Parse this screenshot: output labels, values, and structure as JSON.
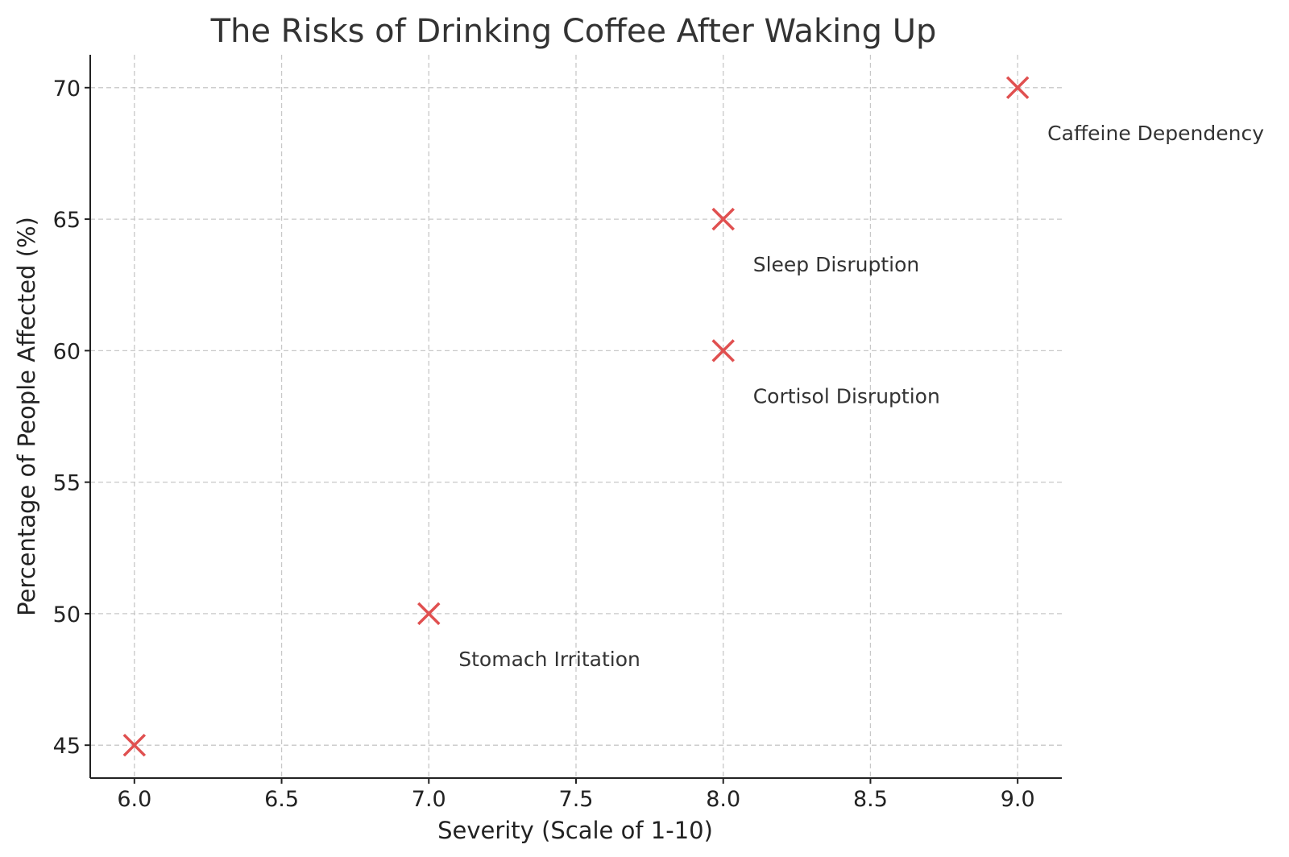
{
  "chart_data": {
    "type": "scatter",
    "title": "The Risks of Drinking Coffee After Waking Up",
    "xlabel": "Severity (Scale of 1-10)",
    "ylabel": "Percentage of People Affected (%)",
    "xlim": [
      5.85,
      9.15
    ],
    "ylim": [
      43.75,
      71.25
    ],
    "x_ticks": [
      "6.0",
      "6.5",
      "7.0",
      "7.5",
      "8.0",
      "8.5",
      "9.0"
    ],
    "y_ticks": [
      "45",
      "50",
      "55",
      "60",
      "65",
      "70"
    ],
    "grid": true,
    "marker": "x",
    "marker_color": "#e05050",
    "points": [
      {
        "x": 6.0,
        "y": 45,
        "label": ""
      },
      {
        "x": 7.0,
        "y": 50,
        "label": "Stomach Irritation"
      },
      {
        "x": 8.0,
        "y": 60,
        "label": "Cortisol Disruption"
      },
      {
        "x": 8.0,
        "y": 65,
        "label": "Sleep Disruption"
      },
      {
        "x": 9.0,
        "y": 70,
        "label": "Caffeine Dependency"
      }
    ]
  }
}
